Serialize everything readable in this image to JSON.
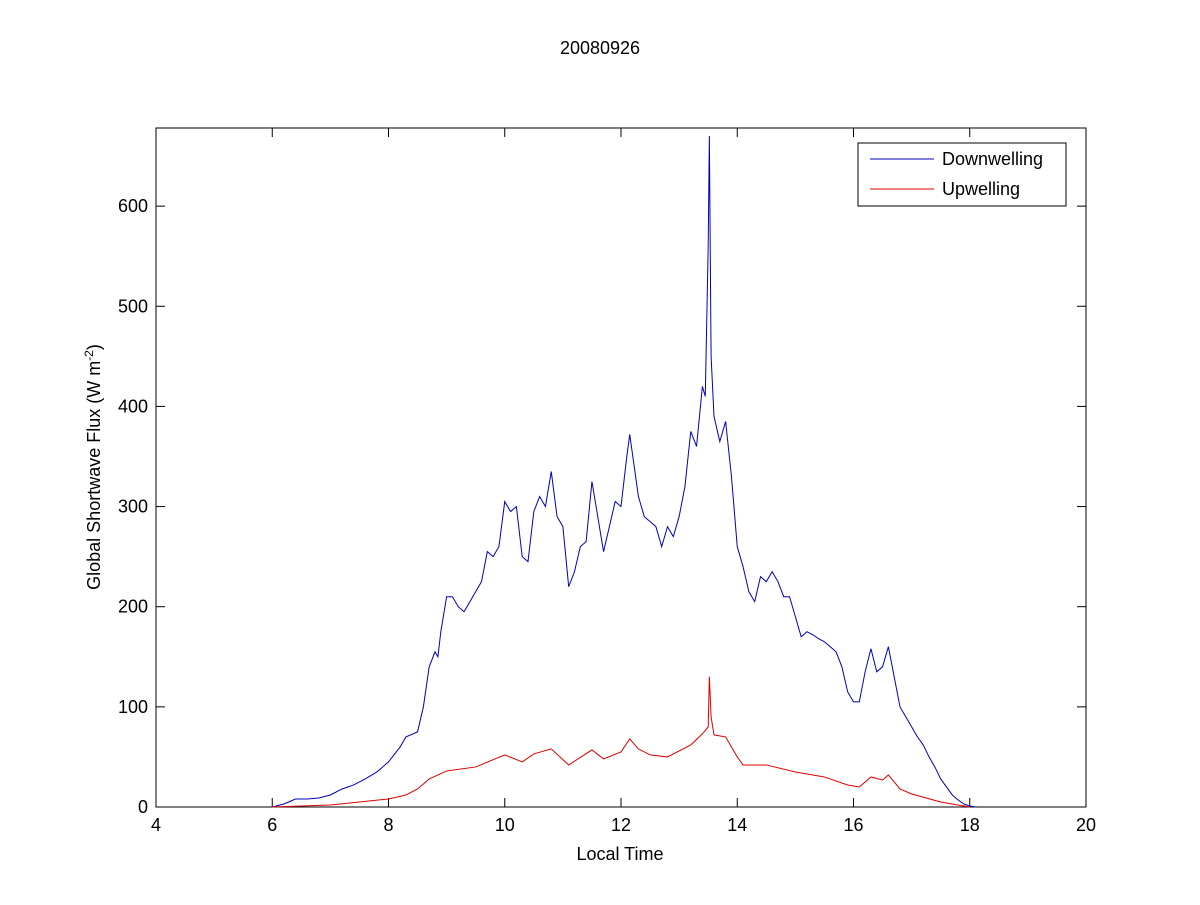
{
  "chart_data": {
    "type": "line",
    "title": "20080926",
    "xlabel": "Local Time",
    "ylabel": {
      "text": "Global Shortwave Flux (W m",
      "superscript": "-2",
      "suffix": ")"
    },
    "xlim": [
      4,
      20
    ],
    "xticks": [
      4,
      6,
      8,
      10,
      12,
      14,
      16,
      18,
      20
    ],
    "ylim": [
      0,
      678
    ],
    "yticks": [
      0,
      100,
      200,
      300,
      400,
      500,
      600
    ],
    "grid": false,
    "legend": "northeast",
    "series": [
      {
        "name": "Downwelling",
        "color": "#0000bb",
        "x": [
          6.0,
          6.2,
          6.4,
          6.6,
          6.8,
          7.0,
          7.2,
          7.4,
          7.6,
          7.8,
          8.0,
          8.2,
          8.3,
          8.5,
          8.6,
          8.7,
          8.8,
          8.85,
          8.9,
          9.0,
          9.1,
          9.2,
          9.3,
          9.4,
          9.5,
          9.6,
          9.7,
          9.8,
          9.9,
          10.0,
          10.1,
          10.2,
          10.3,
          10.4,
          10.5,
          10.6,
          10.7,
          10.8,
          10.9,
          11.0,
          11.1,
          11.2,
          11.3,
          11.4,
          11.5,
          11.6,
          11.7,
          11.8,
          11.9,
          12.0,
          12.1,
          12.15,
          12.3,
          12.4,
          12.5,
          12.6,
          12.7,
          12.8,
          12.9,
          13.0,
          13.1,
          13.2,
          13.3,
          13.4,
          13.45,
          13.5,
          13.52,
          13.55,
          13.6,
          13.7,
          13.8,
          13.9,
          14.0,
          14.1,
          14.2,
          14.3,
          14.4,
          14.5,
          14.6,
          14.7,
          14.8,
          14.9,
          15.0,
          15.1,
          15.2,
          15.3,
          15.4,
          15.5,
          15.6,
          15.7,
          15.8,
          15.9,
          16.0,
          16.1,
          16.2,
          16.3,
          16.4,
          16.5,
          16.6,
          16.7,
          16.8,
          16.9,
          17.0,
          17.1,
          17.2,
          17.3,
          17.4,
          17.5,
          17.6,
          17.7,
          17.8,
          17.9,
          18.0,
          18.1
        ],
        "values": [
          0,
          3,
          8,
          8,
          9,
          12,
          18,
          22,
          28,
          35,
          45,
          60,
          70,
          75,
          100,
          140,
          155,
          150,
          175,
          210,
          210,
          200,
          195,
          205,
          215,
          225,
          255,
          250,
          260,
          305,
          295,
          300,
          250,
          245,
          295,
          310,
          300,
          335,
          290,
          280,
          220,
          235,
          260,
          265,
          325,
          290,
          255,
          280,
          305,
          300,
          350,
          372,
          310,
          290,
          285,
          280,
          260,
          280,
          270,
          290,
          320,
          375,
          360,
          420,
          410,
          560,
          670,
          450,
          390,
          365,
          385,
          330,
          260,
          240,
          215,
          205,
          230,
          225,
          235,
          225,
          210,
          210,
          190,
          170,
          175,
          172,
          168,
          165,
          160,
          155,
          140,
          115,
          105,
          105,
          135,
          158,
          135,
          140,
          160,
          130,
          100,
          90,
          80,
          70,
          62,
          50,
          40,
          28,
          20,
          12,
          7,
          3,
          1,
          0
        ]
      },
      {
        "name": "Upwelling",
        "color": "#dd0000",
        "x": [
          6.0,
          6.5,
          7.0,
          7.5,
          8.0,
          8.3,
          8.5,
          8.7,
          9.0,
          9.5,
          10.0,
          10.3,
          10.5,
          10.8,
          11.1,
          11.5,
          11.7,
          12.0,
          12.15,
          12.3,
          12.5,
          12.8,
          13.2,
          13.4,
          13.5,
          13.52,
          13.55,
          13.6,
          13.8,
          14.0,
          14.1,
          14.5,
          15.0,
          15.5,
          15.9,
          16.1,
          16.3,
          16.5,
          16.6,
          16.8,
          17.0,
          17.5,
          18.0
        ],
        "values": [
          0,
          1,
          2,
          5,
          8,
          12,
          18,
          28,
          36,
          40,
          52,
          45,
          53,
          58,
          42,
          57,
          48,
          55,
          68,
          58,
          52,
          50,
          62,
          73,
          80,
          130,
          90,
          72,
          70,
          50,
          42,
          42,
          35,
          30,
          22,
          20,
          30,
          27,
          32,
          18,
          13,
          5,
          0
        ]
      }
    ]
  }
}
